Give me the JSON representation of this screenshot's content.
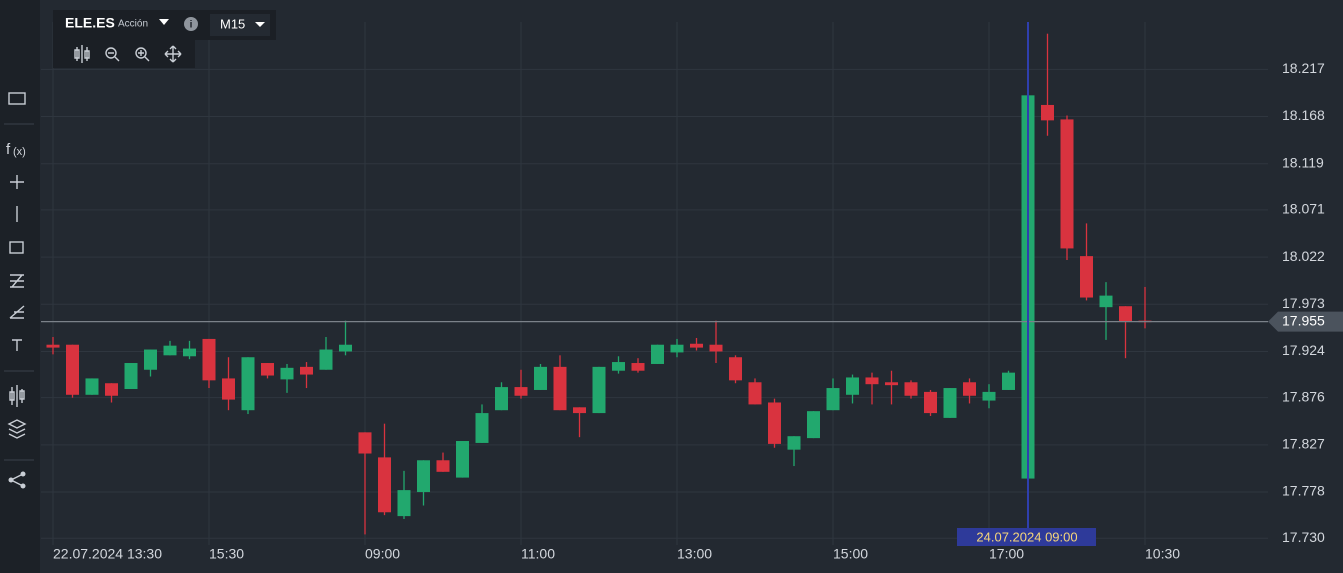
{
  "header": {
    "symbol": "ELE.ES",
    "kind": "Acción",
    "timeframe": "M15"
  },
  "chart_data": {
    "type": "candlestick",
    "categories": [
      "22.07.2024 13:30",
      null,
      null,
      null,
      null,
      null,
      null,
      null,
      "15:30",
      null,
      null,
      null,
      null,
      null,
      null,
      null,
      "09:00",
      null,
      null,
      null,
      null,
      null,
      null,
      null,
      "11:00",
      null,
      null,
      null,
      null,
      null,
      null,
      null,
      "13:00",
      null,
      null,
      null,
      null,
      null,
      null,
      null,
      "15:00",
      null,
      null,
      null,
      null,
      null,
      null,
      null,
      "17:00",
      null,
      null,
      null,
      null,
      null,
      null,
      null,
      "10:30"
    ],
    "open": [
      17.931,
      17.931,
      17.879,
      17.891,
      17.885,
      17.905,
      17.92,
      17.919,
      17.937,
      17.896,
      17.863,
      17.912,
      17.895,
      17.908,
      17.905,
      17.924,
      17.84,
      17.814,
      17.753,
      17.778,
      17.811,
      17.793,
      17.829,
      17.863,
      17.887,
      17.884,
      17.908,
      17.866,
      17.86,
      17.904,
      17.912,
      17.911,
      17.923,
      17.932,
      17.931,
      17.918,
      17.892,
      17.871,
      17.822,
      17.834,
      17.863,
      17.879,
      17.897,
      17.892,
      17.892,
      17.882,
      17.855,
      17.892,
      17.873,
      17.884,
      17.792,
      18.18,
      18.165,
      18.023,
      17.97,
      17.971,
      17.956
    ],
    "high": [
      17.939,
      17.931,
      17.896,
      17.891,
      17.912,
      17.926,
      17.935,
      17.935,
      17.937,
      17.918,
      17.918,
      17.912,
      17.911,
      17.913,
      17.939,
      17.956,
      17.84,
      17.849,
      17.8,
      17.811,
      17.819,
      17.831,
      17.869,
      17.892,
      17.905,
      17.911,
      17.92,
      17.866,
      17.908,
      17.919,
      17.917,
      17.931,
      17.937,
      17.938,
      17.956,
      17.92,
      17.896,
      17.875,
      17.836,
      17.862,
      17.896,
      17.9,
      17.902,
      17.904,
      17.894,
      17.884,
      17.886,
      17.896,
      17.89,
      17.904,
      18.19,
      18.254,
      18.169,
      18.057,
      17.996,
      17.971,
      17.991
    ],
    "low": [
      17.921,
      17.876,
      17.879,
      17.871,
      17.885,
      17.898,
      17.92,
      17.916,
      17.886,
      17.863,
      17.859,
      17.896,
      17.881,
      17.886,
      17.905,
      17.92,
      17.734,
      17.754,
      17.75,
      17.764,
      17.799,
      17.793,
      17.829,
      17.863,
      17.875,
      17.884,
      17.863,
      17.835,
      17.86,
      17.901,
      17.902,
      17.911,
      17.918,
      17.925,
      17.912,
      17.891,
      17.869,
      17.824,
      17.805,
      17.834,
      17.863,
      17.87,
      17.869,
      17.869,
      17.875,
      17.857,
      17.855,
      17.87,
      17.865,
      17.884,
      17.792,
      18.148,
      18.019,
      17.977,
      17.936,
      17.917,
      17.948
    ],
    "close": [
      17.928,
      17.879,
      17.896,
      17.878,
      17.912,
      17.926,
      17.93,
      17.927,
      17.894,
      17.874,
      17.918,
      17.899,
      17.907,
      17.9,
      17.926,
      17.931,
      17.818,
      17.757,
      17.78,
      17.811,
      17.799,
      17.831,
      17.86,
      17.887,
      17.878,
      17.908,
      17.863,
      17.86,
      17.908,
      17.913,
      17.904,
      17.931,
      17.931,
      17.928,
      17.924,
      17.894,
      17.869,
      17.828,
      17.836,
      17.862,
      17.886,
      17.897,
      17.89,
      17.889,
      17.878,
      17.86,
      17.886,
      17.878,
      17.882,
      17.902,
      18.19,
      18.164,
      18.031,
      17.98,
      17.982,
      17.955,
      17.955
    ],
    "up_color": "#22a86e",
    "down_color": "#d9333f",
    "ylim": [
      17.723,
      18.289
    ],
    "yticks": [
      18.217,
      18.168,
      18.119,
      18.071,
      18.022,
      17.973,
      17.924,
      17.876,
      17.827,
      17.778,
      {
        "value": 17.73,
        "label": "17.730"
      }
    ],
    "last_price": 17.955,
    "crosshair_label": "24.07.2024 09:00",
    "grid": true
  }
}
